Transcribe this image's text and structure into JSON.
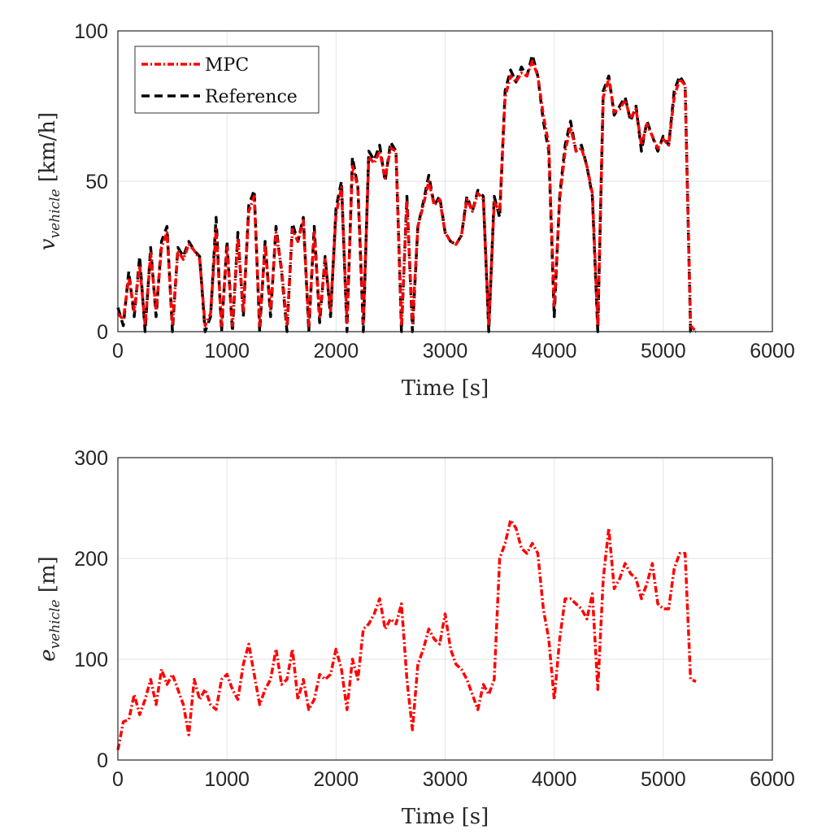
{
  "chart_data": [
    {
      "type": "line",
      "xlabel": "Time [s]",
      "ylabel_main": "v",
      "ylabel_sub": "vehicle",
      "ylabel_unit": " [km/h]",
      "xlim": [
        0,
        6000
      ],
      "ylim": [
        0,
        100
      ],
      "xticks": [
        "0",
        "1000",
        "2000",
        "3000",
        "4000",
        "5000",
        "6000"
      ],
      "yticks": [
        "0",
        "50",
        "100"
      ],
      "grid": true,
      "legend_position": "top-left",
      "x": [
        0,
        50,
        100,
        150,
        200,
        250,
        300,
        350,
        400,
        450,
        500,
        550,
        600,
        650,
        700,
        750,
        800,
        850,
        900,
        950,
        1000,
        1050,
        1100,
        1150,
        1200,
        1250,
        1300,
        1350,
        1400,
        1450,
        1500,
        1550,
        1600,
        1650,
        1700,
        1750,
        1800,
        1850,
        1900,
        1950,
        2000,
        2050,
        2100,
        2150,
        2200,
        2250,
        2300,
        2350,
        2400,
        2450,
        2500,
        2550,
        2600,
        2650,
        2700,
        2750,
        2800,
        2850,
        2900,
        2950,
        3000,
        3050,
        3100,
        3150,
        3200,
        3250,
        3300,
        3350,
        3400,
        3450,
        3500,
        3550,
        3600,
        3650,
        3700,
        3750,
        3800,
        3850,
        3900,
        3950,
        4000,
        4050,
        4100,
        4150,
        4200,
        4250,
        4300,
        4350,
        4400,
        4450,
        4500,
        4550,
        4600,
        4650,
        4700,
        4750,
        4800,
        4850,
        4900,
        4950,
        5000,
        5050,
        5100,
        5150,
        5200,
        5250,
        5300
      ],
      "series": [
        {
          "name": "Reference",
          "color": "#000000",
          "values": [
            8,
            2,
            20,
            5,
            25,
            0,
            28,
            5,
            30,
            35,
            0,
            28,
            25,
            30,
            27,
            25,
            0,
            5,
            38,
            0,
            30,
            0,
            33,
            5,
            42,
            47,
            0,
            30,
            5,
            35,
            20,
            0,
            36,
            30,
            38,
            0,
            35,
            3,
            25,
            5,
            41,
            50,
            0,
            58,
            48,
            0,
            60,
            57,
            62,
            50,
            63,
            60,
            0,
            45,
            0,
            35,
            43,
            52,
            42,
            45,
            33,
            30,
            29,
            32,
            45,
            40,
            47,
            45,
            0,
            45,
            38,
            80,
            87,
            83,
            88,
            85,
            92,
            85,
            70,
            60,
            5,
            45,
            62,
            70,
            60,
            62,
            55,
            45,
            0,
            80,
            85,
            72,
            75,
            78,
            70,
            75,
            60,
            70,
            65,
            60,
            65,
            62,
            80,
            85,
            82,
            0,
            0
          ]
        },
        {
          "name": "MPC",
          "color": "#ff0000",
          "values": [
            6,
            4,
            18,
            7,
            22,
            2,
            26,
            7,
            28,
            33,
            2,
            27,
            24,
            29,
            27,
            24,
            2,
            6,
            34,
            2,
            28,
            2,
            31,
            7,
            40,
            45,
            2,
            29,
            7,
            33,
            21,
            2,
            34,
            30,
            37,
            2,
            33,
            5,
            24,
            7,
            39,
            48,
            3,
            55,
            48,
            3,
            58,
            56,
            60,
            51,
            61,
            60,
            2,
            43,
            3,
            35,
            42,
            50,
            42,
            44,
            33,
            30,
            29,
            32,
            44,
            40,
            46,
            44,
            2,
            43,
            40,
            78,
            85,
            83,
            86,
            85,
            90,
            85,
            72,
            62,
            8,
            44,
            60,
            68,
            60,
            61,
            55,
            46,
            2,
            78,
            84,
            73,
            74,
            77,
            71,
            74,
            62,
            69,
            65,
            61,
            64,
            62,
            78,
            84,
            82,
            2,
            0
          ]
        }
      ]
    },
    {
      "type": "line",
      "xlabel": "Time [s]",
      "ylabel_main": "e",
      "ylabel_sub": "vehicle",
      "ylabel_unit": " [m]",
      "xlim": [
        0,
        6000
      ],
      "ylim": [
        0,
        300
      ],
      "xticks": [
        "0",
        "1000",
        "2000",
        "3000",
        "4000",
        "5000",
        "6000"
      ],
      "yticks": [
        "0",
        "100",
        "200",
        "300"
      ],
      "grid": true,
      "x": [
        0,
        50,
        100,
        150,
        200,
        250,
        300,
        350,
        400,
        450,
        500,
        550,
        600,
        650,
        700,
        750,
        800,
        850,
        900,
        950,
        1000,
        1050,
        1100,
        1150,
        1200,
        1250,
        1300,
        1350,
        1400,
        1450,
        1500,
        1550,
        1600,
        1650,
        1700,
        1750,
        1800,
        1850,
        1900,
        1950,
        2000,
        2050,
        2100,
        2150,
        2200,
        2250,
        2300,
        2350,
        2400,
        2450,
        2500,
        2550,
        2600,
        2650,
        2700,
        2750,
        2800,
        2850,
        2900,
        2950,
        3000,
        3050,
        3100,
        3150,
        3200,
        3250,
        3300,
        3350,
        3400,
        3450,
        3500,
        3550,
        3600,
        3650,
        3700,
        3750,
        3800,
        3850,
        3900,
        3950,
        4000,
        4050,
        4100,
        4150,
        4200,
        4250,
        4300,
        4350,
        4400,
        4450,
        4500,
        4550,
        4600,
        4650,
        4700,
        4750,
        4800,
        4850,
        4900,
        4950,
        5000,
        5050,
        5100,
        5150,
        5200,
        5250,
        5300
      ],
      "series": [
        {
          "name": "MPC",
          "color": "#ff0000",
          "values": [
            10,
            38,
            40,
            65,
            45,
            60,
            80,
            55,
            90,
            75,
            85,
            70,
            55,
            25,
            80,
            60,
            70,
            55,
            50,
            80,
            85,
            70,
            60,
            95,
            115,
            85,
            55,
            70,
            80,
            110,
            75,
            80,
            110,
            60,
            80,
            50,
            60,
            85,
            80,
            85,
            110,
            90,
            50,
            100,
            80,
            130,
            135,
            145,
            160,
            130,
            140,
            135,
            155,
            80,
            30,
            95,
            110,
            130,
            120,
            115,
            145,
            110,
            95,
            90,
            80,
            65,
            50,
            75,
            65,
            80,
            200,
            215,
            238,
            230,
            210,
            205,
            215,
            205,
            150,
            120,
            60,
            120,
            160,
            160,
            155,
            150,
            140,
            165,
            70,
            180,
            230,
            170,
            180,
            195,
            185,
            180,
            160,
            175,
            195,
            155,
            150,
            150,
            190,
            205,
            205,
            80,
            78
          ]
        }
      ]
    }
  ]
}
